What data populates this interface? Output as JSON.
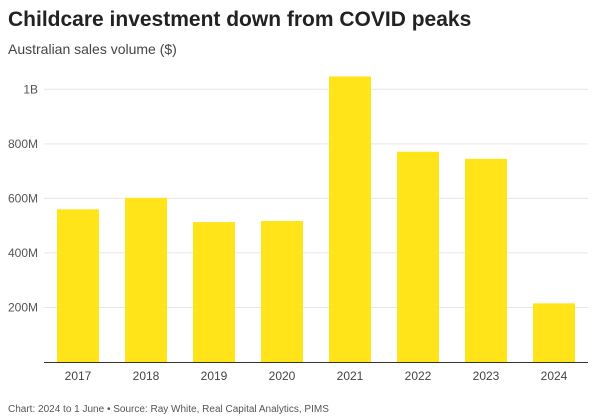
{
  "chart_data": {
    "type": "bar",
    "title": "Childcare investment down from COVID peaks",
    "subtitle": "Australian sales volume ($)",
    "xlabel": "",
    "ylabel": "",
    "categories": [
      "2017",
      "2018",
      "2019",
      "2020",
      "2021",
      "2022",
      "2023",
      "2024"
    ],
    "values": [
      560000000,
      602000000,
      513000000,
      517000000,
      1047000000,
      771000000,
      745000000,
      215000000
    ],
    "ylim": [
      0,
      1100000000
    ],
    "yticks": [
      200000000,
      400000000,
      600000000,
      800000000,
      1000000000
    ],
    "ytick_labels": [
      "200M",
      "400M",
      "600M",
      "800M",
      "1B"
    ],
    "grid": true,
    "bar_color": "#ffe41a",
    "grid_color": "#e6e6e6",
    "axis_color": "#333333"
  },
  "footer": "Chart: 2024 to 1 June • Source: Ray White, Real Capital Analytics, PIMS"
}
